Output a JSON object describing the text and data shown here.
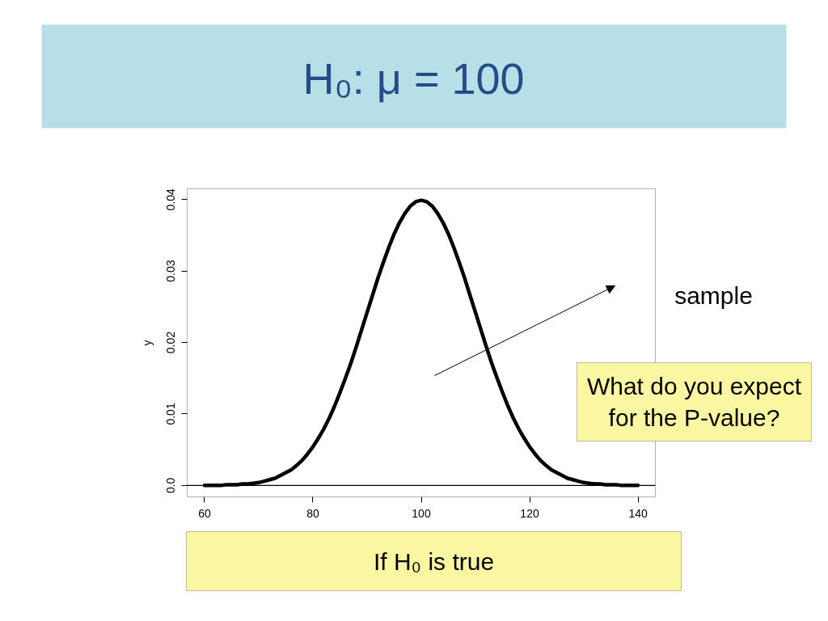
{
  "chart_data": {
    "type": "line",
    "title": "H₀: μ = 100",
    "ylabel": "y",
    "x": [
      60,
      61,
      62,
      63,
      64,
      65,
      66,
      67,
      68,
      69,
      70,
      71,
      72,
      73,
      74,
      75,
      76,
      77,
      78,
      79,
      80,
      81,
      82,
      83,
      84,
      85,
      86,
      87,
      88,
      89,
      90,
      91,
      92,
      93,
      94,
      95,
      96,
      97,
      98,
      99,
      100,
      101,
      102,
      103,
      104,
      105,
      106,
      107,
      108,
      109,
      110,
      111,
      112,
      113,
      114,
      115,
      116,
      117,
      118,
      119,
      120,
      121,
      122,
      123,
      124,
      125,
      126,
      127,
      128,
      129,
      130,
      131,
      132,
      133,
      134,
      135,
      136,
      137,
      138,
      139,
      140
    ],
    "series": [
      {
        "color": "#000000",
        "values": [
          0,
          0,
          0,
          0,
          0.0001,
          0.0001,
          0.0001,
          0.0002,
          0.0002,
          0.0003,
          0.0004,
          0.0006,
          0.0008,
          0.001,
          0.0014,
          0.0018,
          0.0022,
          0.0028,
          0.0035,
          0.0044,
          0.0054,
          0.0066,
          0.0079,
          0.0094,
          0.0111,
          0.013,
          0.015,
          0.0171,
          0.0194,
          0.0218,
          0.0242,
          0.0266,
          0.029,
          0.0312,
          0.0333,
          0.0352,
          0.0368,
          0.0381,
          0.0391,
          0.0397,
          0.0399,
          0.0397,
          0.0391,
          0.0381,
          0.0368,
          0.0352,
          0.0333,
          0.0312,
          0.029,
          0.0266,
          0.0242,
          0.0218,
          0.0194,
          0.0171,
          0.015,
          0.013,
          0.0111,
          0.0094,
          0.0079,
          0.0066,
          0.0054,
          0.0044,
          0.0035,
          0.0028,
          0.0022,
          0.0018,
          0.0014,
          0.001,
          0.0008,
          0.0006,
          0.0004,
          0.0003,
          0.0002,
          0.0002,
          0.0001,
          0.0001,
          0.0001,
          0,
          0,
          0,
          0
        ]
      }
    ],
    "xlim": [
      56.8,
      143.2
    ],
    "ylim": [
      -0.0016,
      0.0415
    ],
    "xticks": [
      60,
      80,
      100,
      120,
      140
    ],
    "yticks": [
      {
        "value": 0,
        "label": "0.0"
      },
      0.01,
      0.02,
      0.03,
      0.04
    ],
    "ref_lines": [
      {
        "axis": "y",
        "value": 0,
        "color": "#000000"
      }
    ],
    "line_style": "solid",
    "annotations": [
      "sample",
      "What do you expect for the P-value?",
      "If H₀ is true"
    ]
  }
}
